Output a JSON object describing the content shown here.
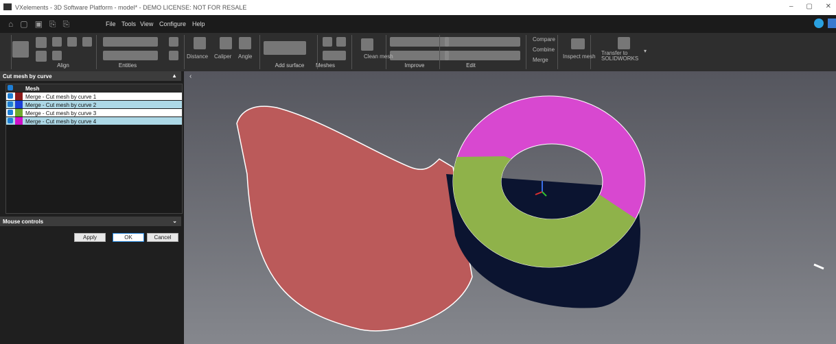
{
  "window": {
    "title": "VXelements - 3D Software Platform - model* - DEMO LICENSE: NOT FOR RESALE"
  },
  "menu": [
    "File",
    "Tools",
    "View",
    "Configure",
    "Help"
  ],
  "toolbar": {
    "groups": [
      "Align",
      "Entities",
      "Add surface",
      "Meshes",
      "Improve",
      "Edit"
    ],
    "tools": [
      "Distance",
      "Caliper",
      "Angle",
      "Clean mesh",
      "Compare",
      "Combine",
      "Merge",
      "Inspect mesh",
      "Transfer to",
      "SOLIDWORKS"
    ]
  },
  "panel": {
    "title": "Cut mesh by curve",
    "table": {
      "header": "Mesh",
      "rows": [
        "Merge - Cut mesh by curve 1",
        "Merge - Cut mesh by curve 2",
        "Merge - Cut mesh by curve 3",
        "Merge - Cut mesh by curve 4"
      ]
    },
    "section": "Mouse controls",
    "buttons": [
      "Apply",
      "OK",
      "Cancel"
    ]
  }
}
